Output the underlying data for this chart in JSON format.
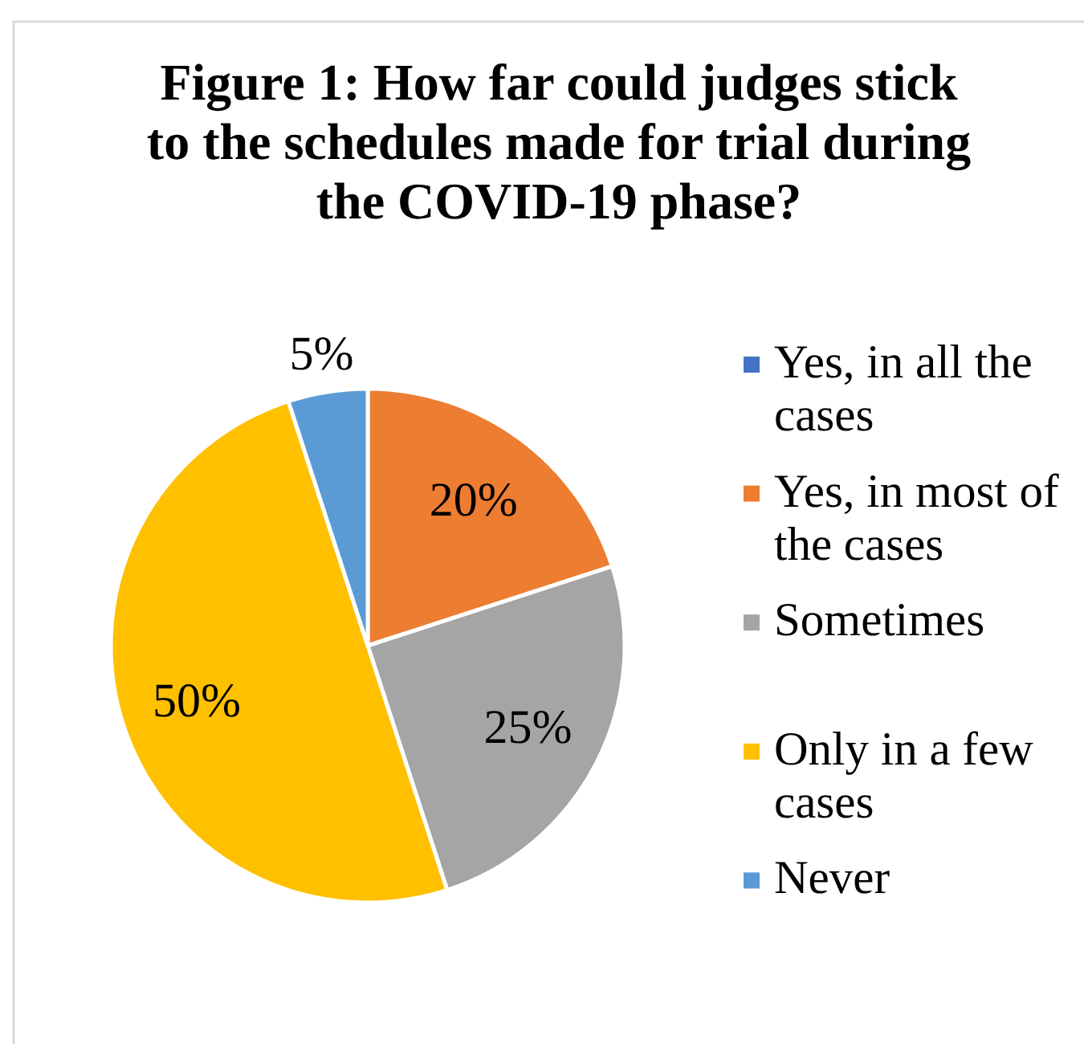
{
  "chart_data": {
    "type": "pie",
    "title": "Figure 1: How far could judges stick to the schedules made for trial during the COVID-19 phase?",
    "categories": [
      "Yes, in all the cases",
      "Yes, in most of the cases",
      "Sometimes",
      "Only in a few cases",
      "Never"
    ],
    "values": [
      0,
      20,
      25,
      50,
      5
    ],
    "colors": [
      "#4472c4",
      "#ed7d31",
      "#a5a5a5",
      "#ffc000",
      "#5b9bd5"
    ],
    "value_labels": [
      null,
      "20%",
      "25%",
      "50%",
      "5%"
    ],
    "legend": "right"
  }
}
